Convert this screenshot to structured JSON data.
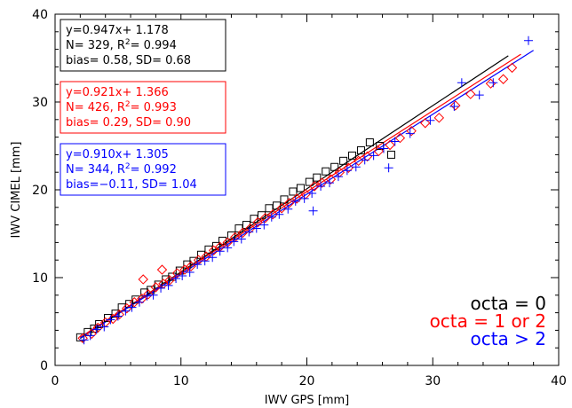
{
  "chart_data": {
    "type": "scatter",
    "title": "",
    "xlabel": "IWV GPS [mm]",
    "ylabel": "IWV CIMEL [mm]",
    "xlim": [
      0,
      40
    ],
    "ylim": [
      0,
      40
    ],
    "x_ticks": [
      "0",
      "10",
      "20",
      "30",
      "40"
    ],
    "y_ticks": [
      "0",
      "10",
      "20",
      "30",
      "40"
    ],
    "grid": false,
    "legend_position": "bottom-right",
    "series": [
      {
        "name": "octa = 0",
        "color": "#000000",
        "marker": "square",
        "fit": {
          "slope": 0.947,
          "intercept": 1.178,
          "x_range": [
            2,
            36
          ]
        },
        "stats": {
          "line1": "y=0.947x+ 1.178",
          "n_label": "N=   329, R",
          "r2_label": "= 0.994",
          "line3": "bias= 0.58, SD= 0.68"
        },
        "x": [
          2.0,
          2.6,
          3.1,
          3.5,
          4.2,
          4.8,
          5.3,
          5.9,
          6.4,
          7.1,
          7.6,
          8.2,
          8.8,
          9.3,
          9.9,
          10.5,
          11.0,
          11.6,
          12.2,
          12.8,
          13.3,
          14.0,
          14.6,
          15.2,
          15.8,
          16.4,
          17.0,
          17.6,
          18.2,
          18.9,
          19.5,
          20.2,
          20.8,
          21.5,
          22.2,
          22.9,
          23.6,
          24.3,
          25.0,
          25.8,
          26.7
        ],
        "y": [
          3.2,
          3.8,
          4.2,
          4.7,
          5.4,
          5.9,
          6.6,
          7.0,
          7.5,
          8.3,
          8.6,
          9.2,
          9.8,
          10.1,
          10.8,
          11.5,
          11.9,
          12.6,
          13.2,
          13.6,
          14.2,
          14.8,
          15.6,
          16.0,
          16.7,
          17.1,
          17.9,
          18.2,
          18.9,
          19.8,
          20.2,
          20.9,
          21.4,
          22.1,
          22.6,
          23.3,
          23.9,
          24.5,
          25.4,
          25.0,
          24.0
        ]
      },
      {
        "name": "octa = 1 or 2",
        "color": "#ff0000",
        "marker": "diamond",
        "fit": {
          "slope": 0.921,
          "intercept": 1.366,
          "x_range": [
            2,
            37
          ]
        },
        "stats": {
          "line1": "y=0.921x+ 1.366",
          "n_label": "N=   426, R",
          "r2_label": "= 0.993",
          "line3": "bias= 0.29, SD= 0.90"
        },
        "x": [
          2.2,
          2.9,
          3.4,
          4.0,
          4.6,
          5.1,
          5.7,
          6.3,
          6.9,
          7.4,
          8.0,
          8.6,
          9.1,
          9.7,
          10.3,
          10.8,
          11.4,
          12.0,
          12.6,
          13.1,
          13.7,
          14.3,
          14.9,
          15.5,
          16.1,
          16.7,
          17.3,
          18.0,
          18.6,
          19.2,
          19.9,
          20.6,
          21.2,
          21.9,
          22.6,
          23.3,
          24.1,
          24.8,
          25.7,
          26.6,
          27.4,
          28.3,
          29.4,
          30.5,
          31.8,
          33.0,
          34.6,
          35.6,
          36.3,
          7.0,
          8.5
        ],
        "y": [
          3.1,
          3.6,
          4.3,
          4.9,
          5.3,
          5.8,
          6.5,
          7.2,
          7.6,
          8.1,
          8.9,
          9.3,
          9.7,
          10.5,
          10.9,
          11.3,
          12.0,
          12.4,
          13.1,
          13.5,
          14.0,
          14.6,
          15.1,
          15.6,
          16.3,
          16.8,
          17.2,
          17.9,
          18.5,
          19.0,
          19.5,
          20.4,
          20.8,
          21.2,
          22.0,
          22.5,
          23.3,
          23.8,
          24.4,
          25.1,
          25.9,
          26.7,
          27.6,
          28.2,
          29.6,
          30.9,
          32.1,
          32.6,
          33.9,
          9.8,
          10.9
        ]
      },
      {
        "name": "octa > 2",
        "color": "#0000ff",
        "marker": "plus",
        "fit": {
          "slope": 0.91,
          "intercept": 1.305,
          "x_range": [
            2,
            38
          ]
        },
        "stats": {
          "line1": "y=0.910x+ 1.305",
          "n_label": "N=   344, R",
          "r2_label": "= 0.992",
          "line3": "bias=−0.11, SD= 1.04"
        },
        "x": [
          2.3,
          2.8,
          3.3,
          3.9,
          4.4,
          5.0,
          5.6,
          6.1,
          6.7,
          7.3,
          7.8,
          8.4,
          9.0,
          9.6,
          10.1,
          10.7,
          11.3,
          11.9,
          12.5,
          13.1,
          13.7,
          14.2,
          14.8,
          15.4,
          16.0,
          16.6,
          17.2,
          17.8,
          18.5,
          19.1,
          19.8,
          20.4,
          21.1,
          21.8,
          22.5,
          23.2,
          23.9,
          24.6,
          25.3,
          26.1,
          27.0,
          28.2,
          29.8,
          31.7,
          32.3,
          33.7,
          34.8,
          37.6,
          20.5,
          26.5
        ],
        "y": [
          2.9,
          3.4,
          4.1,
          4.4,
          5.2,
          5.6,
          6.2,
          6.6,
          7.2,
          7.9,
          8.0,
          8.8,
          9.1,
          9.9,
          10.2,
          10.6,
          11.5,
          11.9,
          12.3,
          13.0,
          13.4,
          14.1,
          14.4,
          15.2,
          15.6,
          16.0,
          16.9,
          17.2,
          17.8,
          18.7,
          19.0,
          19.6,
          20.4,
          20.8,
          21.5,
          22.2,
          22.6,
          23.4,
          23.9,
          24.7,
          25.5,
          26.4,
          27.9,
          29.5,
          32.2,
          30.8,
          32.2,
          37.0,
          17.6,
          22.5
        ]
      }
    ]
  }
}
